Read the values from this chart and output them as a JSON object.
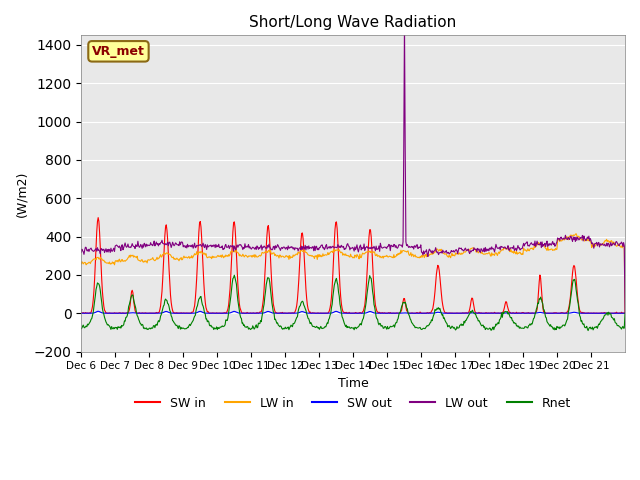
{
  "title": "Short/Long Wave Radiation",
  "xlabel": "Time",
  "ylabel": "(W/m2)",
  "ylim": [
    -200,
    1450
  ],
  "yticks": [
    -200,
    0,
    200,
    400,
    600,
    800,
    1000,
    1200,
    1400
  ],
  "plot_bg_color": "#e8e8e8",
  "annotation_text": "VR_met",
  "annotation_color": "#8B0000",
  "annotation_bg": "#ffff99",
  "tick_labels": [
    "Dec 6",
    "Dec 7",
    "Dec 8",
    "Dec 9",
    "Dec 10",
    "Dec 11",
    "Dec 12",
    "Dec 13",
    "Dec 14",
    "Dec 15",
    "Dec 16",
    "Dec 17",
    "Dec 18",
    "Dec 19",
    "Dec 20",
    "Dec 21"
  ],
  "n_days": 16
}
